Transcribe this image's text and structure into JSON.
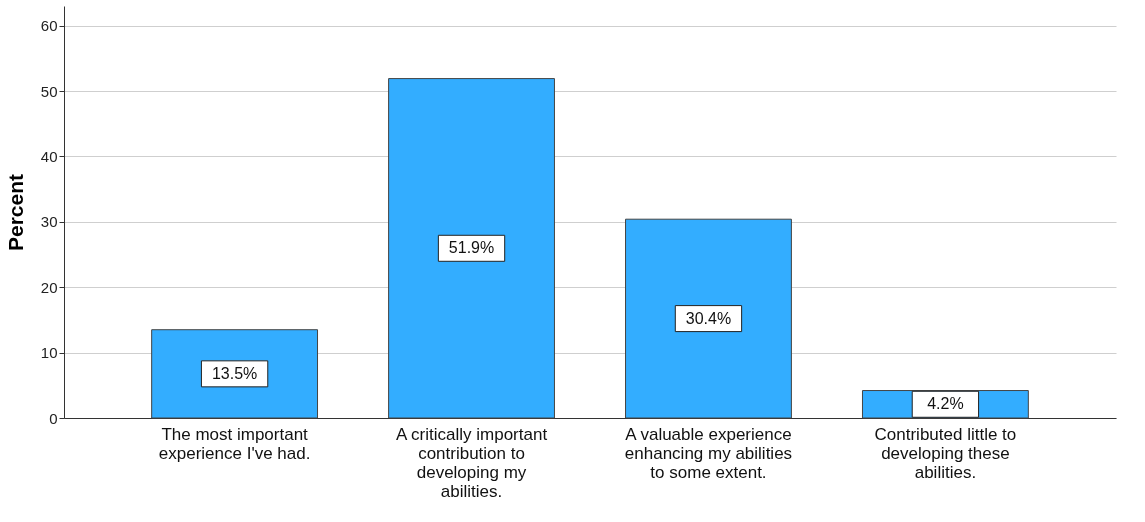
{
  "chart_data": {
    "type": "bar",
    "ylabel": "Percent",
    "categories": [
      "The most important experience I've had.",
      "A critically important contribution to developing my abilities.",
      "A valuable experience enhancing my abilities to some extent.",
      "Contributed little to developing these abilities."
    ],
    "values": [
      13.5,
      51.9,
      30.4,
      4.2
    ],
    "value_labels": [
      "13.5%",
      "51.9%",
      "30.4%",
      "4.2%"
    ],
    "color": "#33adff",
    "ylim": [
      0,
      63
    ],
    "yticks": [
      0,
      10,
      20,
      30,
      40,
      50,
      60
    ],
    "grid": "y"
  }
}
